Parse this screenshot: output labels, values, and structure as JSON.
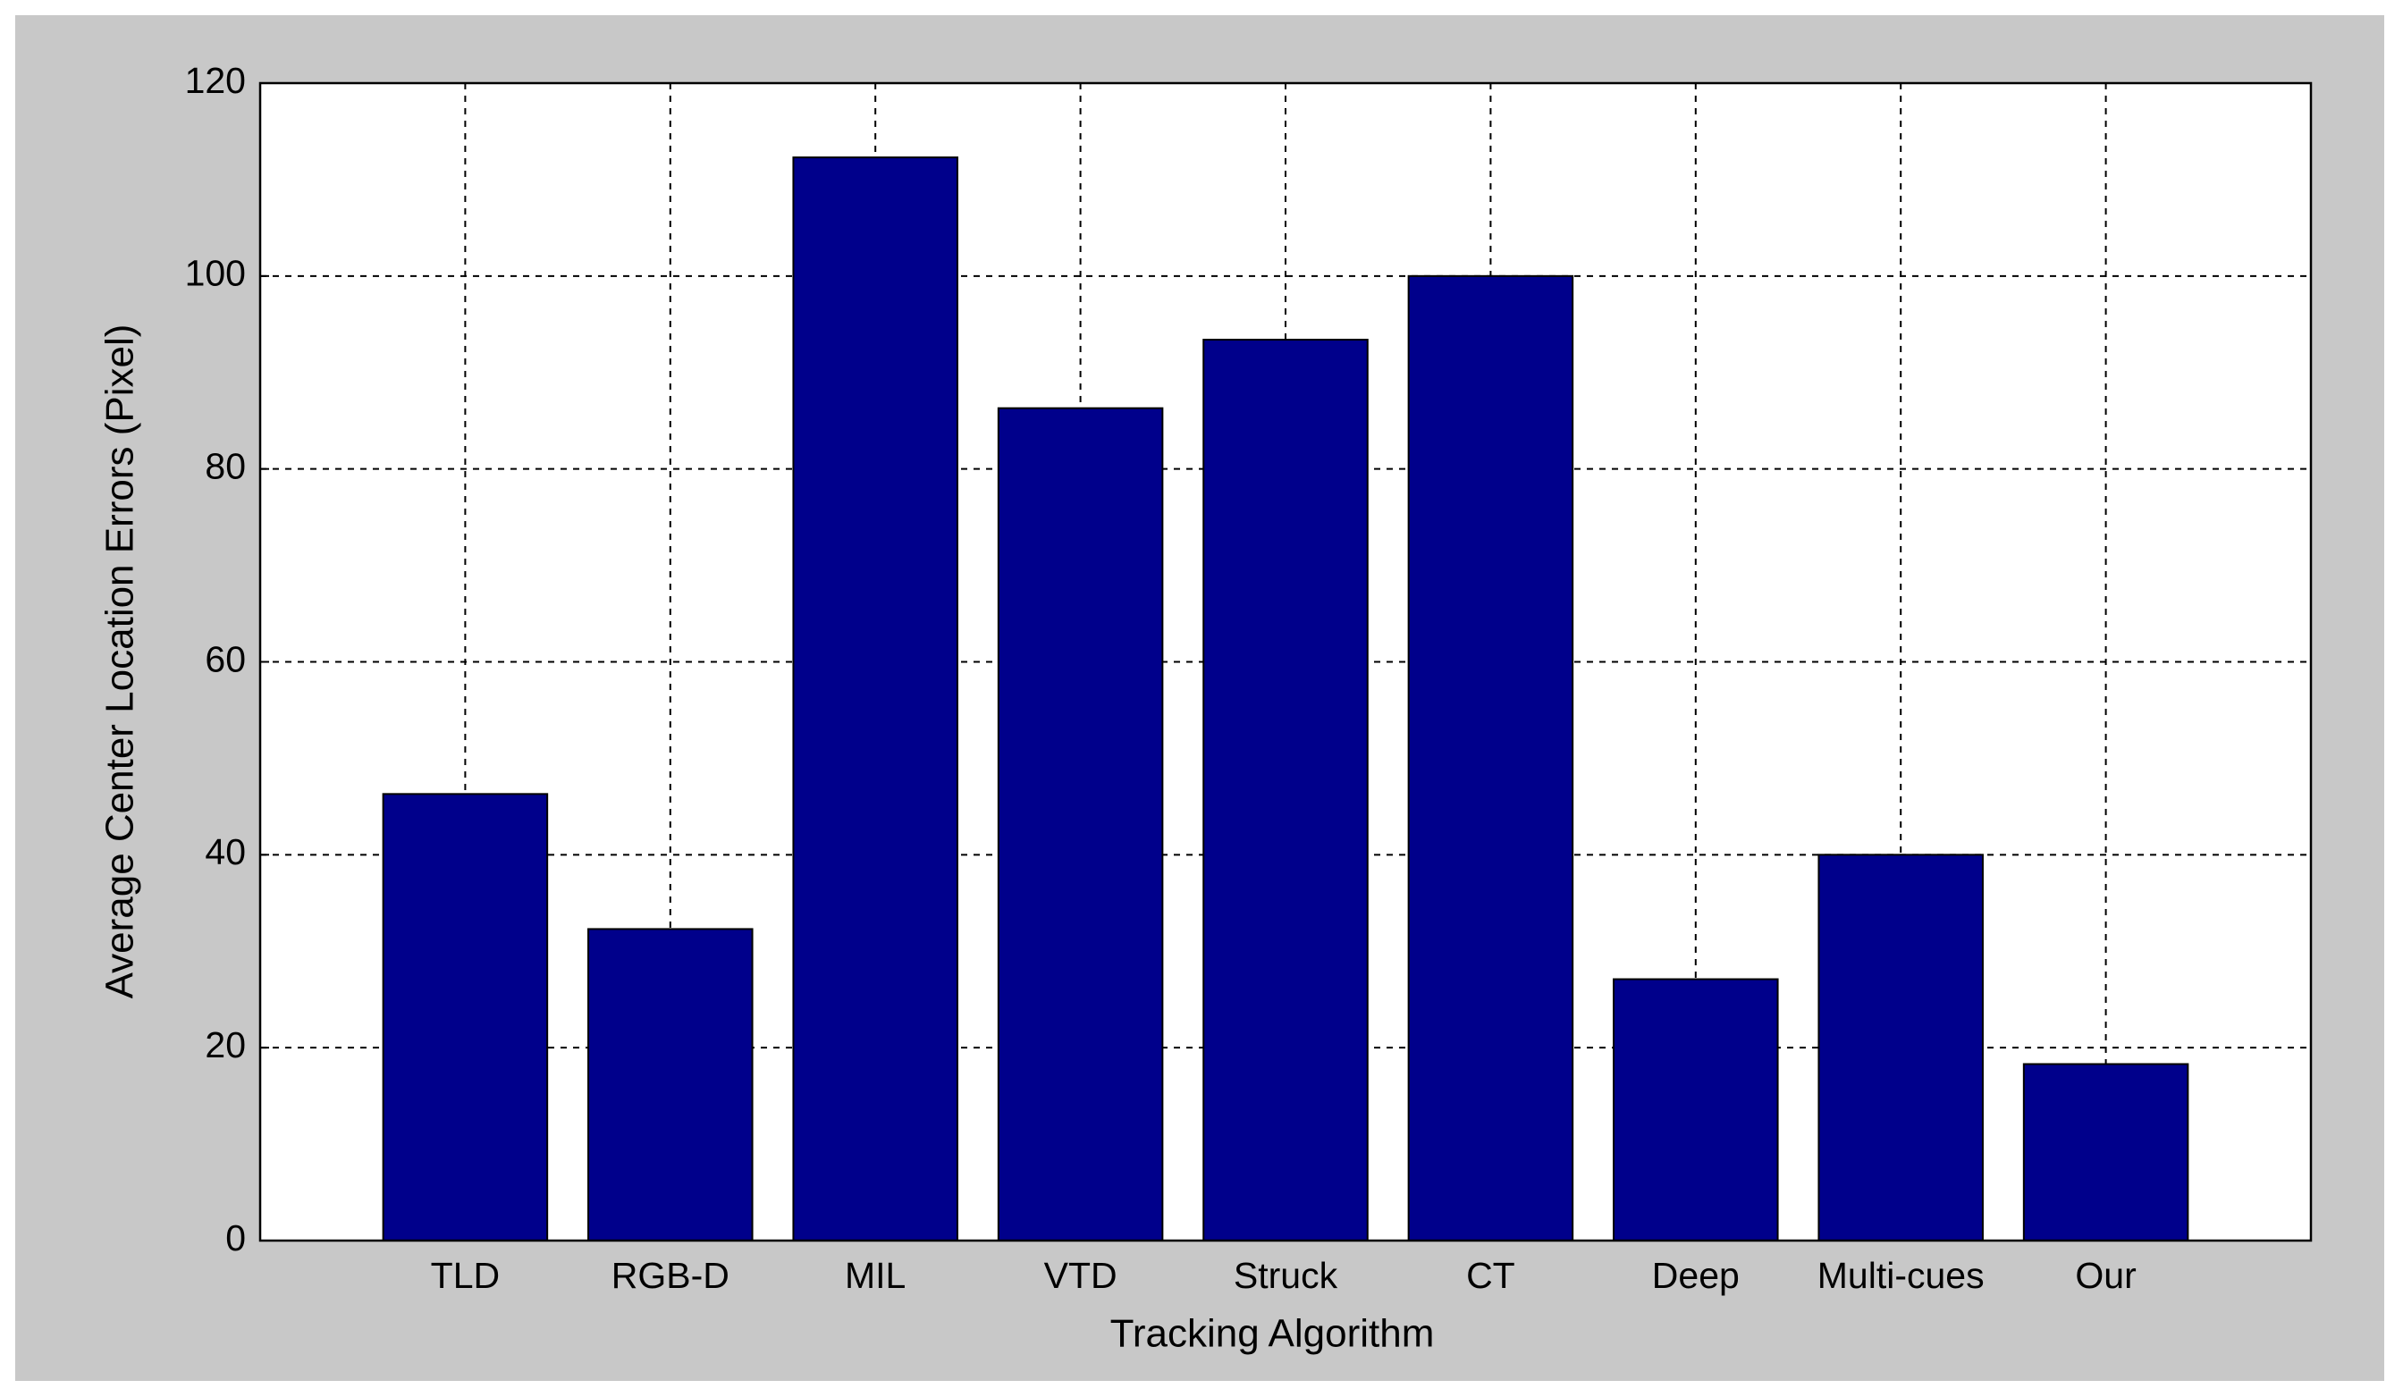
{
  "chart_data": {
    "type": "bar",
    "x_label": "Tracking Algorithm",
    "y_label": "Average Center Location Errors (Pixel)",
    "categories": [
      "TLD",
      "RGB-D",
      "MIL",
      "VTD",
      "Struck",
      "CT",
      "Deep",
      "Multi-cues",
      "Our"
    ],
    "values": [
      46.3,
      32.3,
      112.3,
      86.3,
      93.4,
      100,
      27.1,
      40,
      18.3
    ],
    "color": "#00008b",
    "ylim": [
      0,
      120
    ],
    "yticks": [
      0,
      20,
      40,
      60,
      80,
      100,
      120
    ],
    "grid": true
  }
}
